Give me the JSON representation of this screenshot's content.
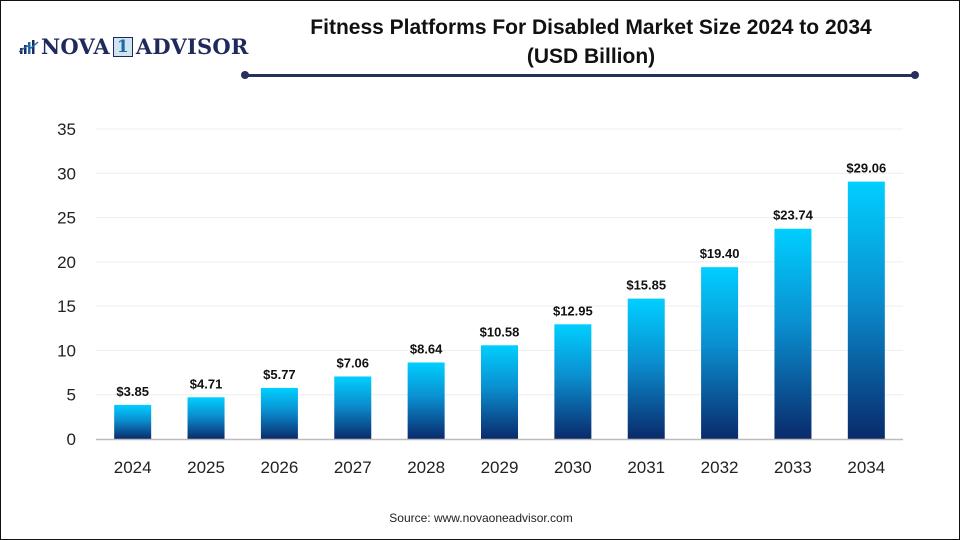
{
  "brand": {
    "logo_icon": "bar-chart-icon",
    "name_part1": "NOVA",
    "name_part2": "1",
    "name_part3": "ADVISOR"
  },
  "footer": {
    "source": "Source: www.novaoneadvisor.com"
  },
  "colors": {
    "bar_top": "#00cfff",
    "bar_bottom": "#0a2a6b",
    "rule": "#27305a",
    "grid": "#eeeeee",
    "axis": "#bbbbbb"
  },
  "chart_data": {
    "type": "bar",
    "title": "Fitness Platforms For Disabled Market Size 2024 to 2034",
    "subtitle": "(USD Billion)",
    "xlabel": "",
    "ylabel": "",
    "categories": [
      "2024",
      "2025",
      "2026",
      "2027",
      "2028",
      "2029",
      "2030",
      "2031",
      "2032",
      "2033",
      "2034"
    ],
    "values": [
      3.85,
      4.71,
      5.77,
      7.06,
      8.64,
      10.58,
      12.95,
      15.85,
      19.4,
      23.74,
      29.06
    ],
    "data_labels": [
      "$3.85",
      "$4.71",
      "$5.77",
      "$7.06",
      "$8.64",
      "$10.58",
      "$12.95",
      "$15.85",
      "$19.40",
      "$23.74",
      "$29.06"
    ],
    "ylim": [
      0,
      35
    ],
    "yticks": [
      0,
      5,
      10,
      15,
      20,
      25,
      30,
      35
    ],
    "grid": true,
    "legend": "none"
  }
}
